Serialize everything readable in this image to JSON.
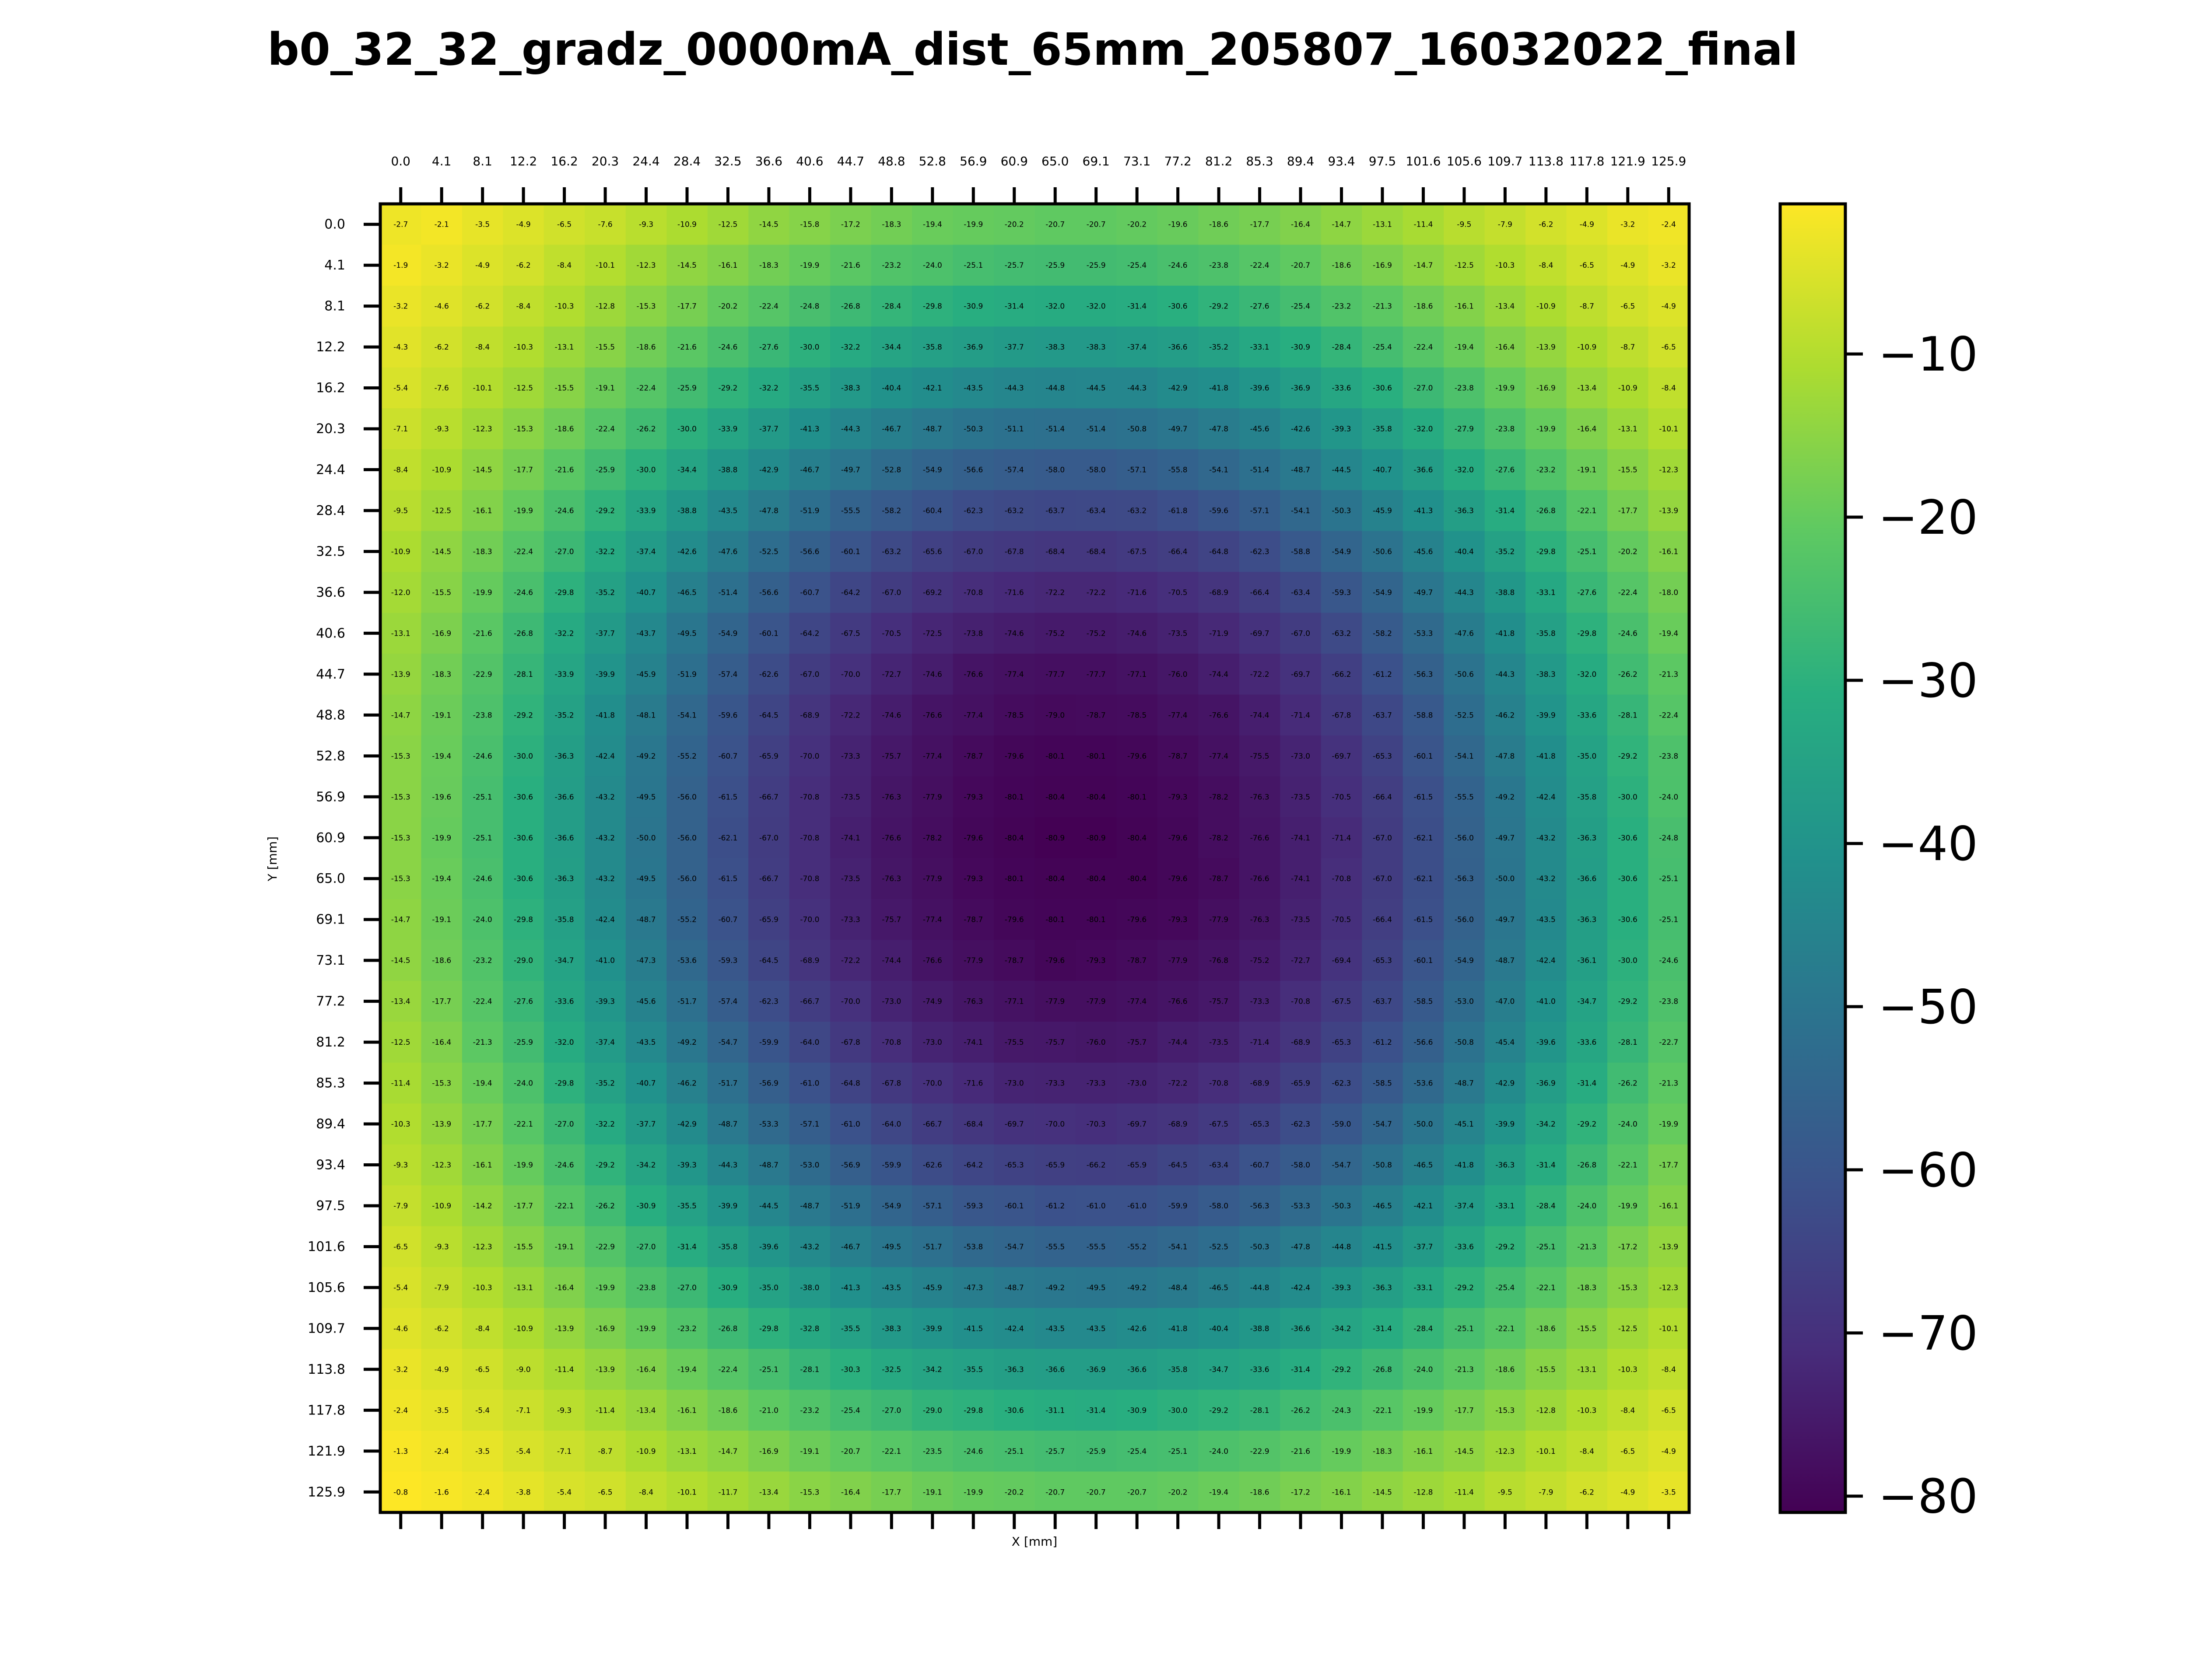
{
  "chart_data": {
    "type": "heatmap",
    "title": "b0_32_32_gradz_0000mA_dist_65mm_205807_16032022_final",
    "xlabel": "X [mm]",
    "ylabel": "Y [mm]",
    "x_ticks": [
      "0.0",
      "4.1",
      "8.1",
      "12.2",
      "16.2",
      "20.3",
      "24.4",
      "28.4",
      "32.5",
      "36.6",
      "40.6",
      "44.7",
      "48.8",
      "52.8",
      "56.9",
      "60.9",
      "65.0",
      "69.1",
      "73.1",
      "77.2",
      "81.2",
      "85.3",
      "89.4",
      "93.4",
      "97.5",
      "101.6",
      "105.6",
      "109.7",
      "113.8",
      "117.8",
      "121.9",
      "125.9"
    ],
    "y_ticks": [
      "0.0",
      "4.1",
      "8.1",
      "12.2",
      "16.2",
      "20.3",
      "24.4",
      "28.4",
      "32.5",
      "36.6",
      "40.6",
      "44.7",
      "48.8",
      "52.8",
      "56.9",
      "60.9",
      "65.0",
      "69.1",
      "73.1",
      "77.2",
      "81.2",
      "85.3",
      "89.4",
      "93.4",
      "97.5",
      "101.6",
      "105.6",
      "109.7",
      "113.8",
      "117.8",
      "121.9",
      "125.9"
    ],
    "x_tick_position": "top",
    "colormap": "viridis",
    "colorbar": {
      "ticks": [
        -10,
        -20,
        -30,
        -40,
        -50,
        -60,
        -70,
        -80
      ],
      "tick_labels": [
        "−10",
        "−20",
        "−30",
        "−40",
        "−50",
        "−60",
        "−70",
        "−80"
      ],
      "range": [
        -81,
        -0.8
      ]
    },
    "values": [
      [
        -2.7,
        -2.1,
        -3.5,
        -4.9,
        -6.5,
        -7.6,
        -9.3,
        -10.9,
        -12.5,
        -14.5,
        -15.8,
        -17.2,
        -18.3,
        -19.4,
        -19.9,
        -20.2,
        -20.7,
        -20.7,
        -20.2,
        -19.6,
        -18.6,
        -17.7,
        -16.4,
        -14.7,
        -13.1,
        -11.4,
        -9.5,
        -7.9,
        -6.2,
        -4.9,
        -3.2,
        -2.4
      ],
      [
        -1.9,
        -3.2,
        -4.9,
        -6.2,
        -8.4,
        -10.1,
        -12.3,
        -14.5,
        -16.1,
        -18.3,
        -19.9,
        -21.6,
        -23.2,
        -24.0,
        -25.1,
        -25.7,
        -25.9,
        -25.9,
        -25.4,
        -24.6,
        -23.8,
        -22.4,
        -20.7,
        -18.6,
        -16.9,
        -14.7,
        -12.5,
        -10.3,
        -8.4,
        -6.5,
        -4.9,
        -3.2
      ],
      [
        -3.2,
        -4.6,
        -6.2,
        -8.4,
        -10.3,
        -12.8,
        -15.3,
        -17.7,
        -20.2,
        -22.4,
        -24.8,
        -26.8,
        -28.4,
        -29.8,
        -30.9,
        -31.4,
        -32.0,
        -32.0,
        -31.4,
        -30.6,
        -29.2,
        -27.6,
        -25.4,
        -23.2,
        -21.3,
        -18.6,
        -16.1,
        -13.4,
        -10.9,
        -8.7,
        -6.5,
        -4.9
      ],
      [
        -4.3,
        -6.2,
        -8.4,
        -10.3,
        -13.1,
        -15.5,
        -18.6,
        -21.6,
        -24.6,
        -27.6,
        -30.0,
        -32.2,
        -34.4,
        -35.8,
        -36.9,
        -37.7,
        -38.3,
        -38.3,
        -37.4,
        -36.6,
        -35.2,
        -33.1,
        -30.9,
        -28.4,
        -25.4,
        -22.4,
        -19.4,
        -16.4,
        -13.9,
        -10.9,
        -8.7,
        -6.5
      ],
      [
        -5.4,
        -7.6,
        -10.1,
        -12.5,
        -15.5,
        -19.1,
        -22.4,
        -25.9,
        -29.2,
        -32.2,
        -35.5,
        -38.3,
        -40.4,
        -42.1,
        -43.5,
        -44.3,
        -44.8,
        -44.5,
        -44.3,
        -42.9,
        -41.8,
        -39.6,
        -36.9,
        -33.6,
        -30.6,
        -27.0,
        -23.8,
        -19.9,
        -16.9,
        -13.4,
        -10.9,
        -8.4
      ],
      [
        -7.1,
        -9.3,
        -12.3,
        -15.3,
        -18.6,
        -22.4,
        -26.2,
        -30.0,
        -33.9,
        -37.7,
        -41.3,
        -44.3,
        -46.7,
        -48.7,
        -50.3,
        -51.1,
        -51.4,
        -51.4,
        -50.8,
        -49.7,
        -47.8,
        -45.6,
        -42.6,
        -39.3,
        -35.8,
        -32.0,
        -27.9,
        -23.8,
        -19.9,
        -16.4,
        -13.1,
        -10.1
      ],
      [
        -8.4,
        -10.9,
        -14.5,
        -17.7,
        -21.6,
        -25.9,
        -30.0,
        -34.4,
        -38.8,
        -42.9,
        -46.7,
        -49.7,
        -52.8,
        -54.9,
        -56.6,
        -57.4,
        -58.0,
        -58.0,
        -57.1,
        -55.8,
        -54.1,
        -51.4,
        -48.7,
        -44.5,
        -40.7,
        -36.6,
        -32.0,
        -27.6,
        -23.2,
        -19.1,
        -15.5,
        -12.3
      ],
      [
        -9.5,
        -12.5,
        -16.1,
        -19.9,
        -24.6,
        -29.2,
        -33.9,
        -38.8,
        -43.5,
        -47.8,
        -51.9,
        -55.5,
        -58.2,
        -60.4,
        -62.3,
        -63.2,
        -63.7,
        -63.4,
        -63.2,
        -61.8,
        -59.6,
        -57.1,
        -54.1,
        -50.3,
        -45.9,
        -41.3,
        -36.3,
        -31.4,
        -26.8,
        -22.1,
        -17.7,
        -13.9
      ],
      [
        -10.9,
        -14.5,
        -18.3,
        -22.4,
        -27.0,
        -32.2,
        -37.4,
        -42.6,
        -47.6,
        -52.5,
        -56.6,
        -60.1,
        -63.2,
        -65.6,
        -67.0,
        -67.8,
        -68.4,
        -68.4,
        -67.5,
        -66.4,
        -64.8,
        -62.3,
        -58.8,
        -54.9,
        -50.6,
        -45.6,
        -40.4,
        -35.2,
        -29.8,
        -25.1,
        -20.2,
        -16.1
      ],
      [
        -12.0,
        -15.5,
        -19.9,
        -24.6,
        -29.8,
        -35.2,
        -40.7,
        -46.5,
        -51.4,
        -56.6,
        -60.7,
        -64.2,
        -67.0,
        -69.2,
        -70.8,
        -71.6,
        -72.2,
        -72.2,
        -71.6,
        -70.5,
        -68.9,
        -66.4,
        -63.4,
        -59.3,
        -54.9,
        -49.7,
        -44.3,
        -38.8,
        -33.1,
        -27.6,
        -22.4,
        -18.0
      ],
      [
        -13.1,
        -16.9,
        -21.6,
        -26.8,
        -32.2,
        -37.7,
        -43.7,
        -49.5,
        -54.9,
        -60.1,
        -64.2,
        -67.5,
        -70.5,
        -72.5,
        -73.8,
        -74.6,
        -75.2,
        -75.2,
        -74.6,
        -73.5,
        -71.9,
        -69.7,
        -67.0,
        -63.2,
        -58.2,
        -53.3,
        -47.6,
        -41.8,
        -35.8,
        -29.8,
        -24.6,
        -19.4
      ],
      [
        -13.9,
        -18.3,
        -22.9,
        -28.1,
        -33.9,
        -39.9,
        -45.9,
        -51.9,
        -57.4,
        -62.6,
        -67.0,
        -70.0,
        -72.7,
        -74.6,
        -76.6,
        -77.4,
        -77.7,
        -77.7,
        -77.1,
        -76.0,
        -74.4,
        -72.2,
        -69.7,
        -66.2,
        -61.2,
        -56.3,
        -50.6,
        -44.3,
        -38.3,
        -32.0,
        -26.2,
        -21.3
      ],
      [
        -14.7,
        -19.1,
        -23.8,
        -29.2,
        -35.2,
        -41.8,
        -48.1,
        -54.1,
        -59.6,
        -64.5,
        -68.9,
        -72.2,
        -74.6,
        -76.6,
        -77.4,
        -78.5,
        -79.0,
        -78.7,
        -78.5,
        -77.4,
        -76.6,
        -74.4,
        -71.4,
        -67.8,
        -63.7,
        -58.8,
        -52.5,
        -46.2,
        -39.9,
        -33.6,
        -28.1,
        -22.4
      ],
      [
        -15.3,
        -19.4,
        -24.6,
        -30.0,
        -36.3,
        -42.4,
        -49.2,
        -55.2,
        -60.7,
        -65.9,
        -70.0,
        -73.3,
        -75.7,
        -77.4,
        -78.7,
        -79.6,
        -80.1,
        -80.1,
        -79.6,
        -78.7,
        -77.4,
        -75.5,
        -73.0,
        -69.7,
        -65.3,
        -60.1,
        -54.1,
        -47.8,
        -41.8,
        -35.0,
        -29.2,
        -23.8
      ],
      [
        -15.3,
        -19.6,
        -25.1,
        -30.6,
        -36.6,
        -43.2,
        -49.5,
        -56.0,
        -61.5,
        -66.7,
        -70.8,
        -73.5,
        -76.3,
        -77.9,
        -79.3,
        -80.1,
        -80.4,
        -80.4,
        -80.1,
        -79.3,
        -78.2,
        -76.3,
        -73.5,
        -70.5,
        -66.4,
        -61.5,
        -55.5,
        -49.2,
        -42.4,
        -35.8,
        -30.0,
        -24.0
      ],
      [
        -15.3,
        -19.9,
        -25.1,
        -30.6,
        -36.6,
        -43.2,
        -50.0,
        -56.0,
        -62.1,
        -67.0,
        -70.8,
        -74.1,
        -76.6,
        -78.2,
        -79.6,
        -80.4,
        -80.9,
        -80.9,
        -80.4,
        -79.6,
        -78.2,
        -76.6,
        -74.1,
        -71.4,
        -67.0,
        -62.1,
        -56.0,
        -49.7,
        -43.2,
        -36.3,
        -30.6,
        -24.8
      ],
      [
        -15.3,
        -19.4,
        -24.6,
        -30.6,
        -36.3,
        -43.2,
        -49.5,
        -56.0,
        -61.5,
        -66.7,
        -70.8,
        -73.5,
        -76.3,
        -77.9,
        -79.3,
        -80.1,
        -80.4,
        -80.4,
        -80.4,
        -79.6,
        -78.7,
        -76.6,
        -74.1,
        -70.8,
        -67.0,
        -62.1,
        -56.3,
        -50.0,
        -43.2,
        -36.6,
        -30.6,
        -25.1
      ],
      [
        -14.7,
        -19.1,
        -24.0,
        -29.8,
        -35.8,
        -42.4,
        -48.7,
        -55.2,
        -60.7,
        -65.9,
        -70.0,
        -73.3,
        -75.7,
        -77.4,
        -78.7,
        -79.6,
        -80.1,
        -80.1,
        -79.6,
        -79.3,
        -77.9,
        -76.3,
        -73.5,
        -70.5,
        -66.4,
        -61.5,
        -56.0,
        -49.7,
        -43.5,
        -36.3,
        -30.6,
        -25.1
      ],
      [
        -14.5,
        -18.6,
        -23.2,
        -29.0,
        -34.7,
        -41.0,
        -47.3,
        -53.6,
        -59.3,
        -64.5,
        -68.9,
        -72.2,
        -74.4,
        -76.6,
        -77.9,
        -78.7,
        -79.6,
        -79.3,
        -78.7,
        -77.9,
        -76.8,
        -75.2,
        -72.7,
        -69.4,
        -65.3,
        -60.1,
        -54.9,
        -48.7,
        -42.4,
        -36.1,
        -30.0,
        -24.6
      ],
      [
        -13.4,
        -17.7,
        -22.4,
        -27.6,
        -33.6,
        -39.3,
        -45.6,
        -51.7,
        -57.4,
        -62.3,
        -66.7,
        -70.0,
        -73.0,
        -74.9,
        -76.3,
        -77.1,
        -77.9,
        -77.9,
        -77.4,
        -76.6,
        -75.7,
        -73.3,
        -70.8,
        -67.5,
        -63.7,
        -58.5,
        -53.0,
        -47.0,
        -41.0,
        -34.7,
        -29.2,
        -23.8
      ],
      [
        -12.5,
        -16.4,
        -21.3,
        -25.9,
        -32.0,
        -37.4,
        -43.5,
        -49.2,
        -54.7,
        -59.9,
        -64.0,
        -67.8,
        -70.8,
        -73.0,
        -74.1,
        -75.5,
        -75.7,
        -76.0,
        -75.7,
        -74.4,
        -73.5,
        -71.4,
        -68.9,
        -65.3,
        -61.2,
        -56.6,
        -50.8,
        -45.4,
        -39.6,
        -33.6,
        -28.1,
        -22.7
      ],
      [
        -11.4,
        -15.3,
        -19.4,
        -24.0,
        -29.8,
        -35.2,
        -40.7,
        -46.2,
        -51.7,
        -56.9,
        -61.0,
        -64.8,
        -67.8,
        -70.0,
        -71.6,
        -73.0,
        -73.3,
        -73.3,
        -73.0,
        -72.2,
        -70.8,
        -68.9,
        -65.9,
        -62.3,
        -58.5,
        -53.6,
        -48.7,
        -42.9,
        -36.9,
        -31.4,
        -26.2,
        -21.3
      ],
      [
        -10.3,
        -13.9,
        -17.7,
        -22.1,
        -27.0,
        -32.2,
        -37.7,
        -42.9,
        -48.7,
        -53.3,
        -57.1,
        -61.0,
        -64.0,
        -66.7,
        -68.4,
        -69.7,
        -70.0,
        -70.3,
        -69.7,
        -68.9,
        -67.5,
        -65.3,
        -62.3,
        -59.0,
        -54.7,
        -50.0,
        -45.1,
        -39.9,
        -34.2,
        -29.2,
        -24.0,
        -19.9
      ],
      [
        -9.3,
        -12.3,
        -16.1,
        -19.9,
        -24.6,
        -29.2,
        -34.2,
        -39.3,
        -44.3,
        -48.7,
        -53.0,
        -56.9,
        -59.9,
        -62.6,
        -64.2,
        -65.3,
        -65.9,
        -66.2,
        -65.9,
        -64.5,
        -63.4,
        -60.7,
        -58.0,
        -54.7,
        -50.8,
        -46.5,
        -41.8,
        -36.3,
        -31.4,
        -26.8,
        -22.1,
        -17.7
      ],
      [
        -7.9,
        -10.9,
        -14.2,
        -17.7,
        -22.1,
        -26.2,
        -30.9,
        -35.5,
        -39.9,
        -44.5,
        -48.7,
        -51.9,
        -54.9,
        -57.1,
        -59.3,
        -60.1,
        -61.2,
        -61.0,
        -61.0,
        -59.9,
        -58.0,
        -56.3,
        -53.3,
        -50.3,
        -46.5,
        -42.1,
        -37.4,
        -33.1,
        -28.4,
        -24.0,
        -19.9,
        -16.1
      ],
      [
        -6.5,
        -9.3,
        -12.3,
        -15.5,
        -19.1,
        -22.9,
        -27.0,
        -31.4,
        -35.8,
        -39.6,
        -43.2,
        -46.7,
        -49.5,
        -51.7,
        -53.8,
        -54.7,
        -55.5,
        -55.5,
        -55.2,
        -54.1,
        -52.5,
        -50.3,
        -47.8,
        -44.8,
        -41.5,
        -37.7,
        -33.6,
        -29.2,
        -25.1,
        -21.3,
        -17.2,
        -13.9
      ],
      [
        -5.4,
        -7.9,
        -10.3,
        -13.1,
        -16.4,
        -19.9,
        -23.8,
        -27.0,
        -30.9,
        -35.0,
        -38.0,
        -41.3,
        -43.5,
        -45.9,
        -47.3,
        -48.7,
        -49.2,
        -49.5,
        -49.2,
        -48.4,
        -46.5,
        -44.8,
        -42.4,
        -39.3,
        -36.3,
        -33.1,
        -29.2,
        -25.4,
        -22.1,
        -18.3,
        -15.3,
        -12.3
      ],
      [
        -4.6,
        -6.2,
        -8.4,
        -10.9,
        -13.9,
        -16.9,
        -19.9,
        -23.2,
        -26.8,
        -29.8,
        -32.8,
        -35.5,
        -38.3,
        -39.9,
        -41.5,
        -42.4,
        -43.5,
        -43.5,
        -42.6,
        -41.8,
        -40.4,
        -38.8,
        -36.6,
        -34.2,
        -31.4,
        -28.4,
        -25.1,
        -22.1,
        -18.6,
        -15.5,
        -12.5,
        -10.1
      ],
      [
        -3.2,
        -4.9,
        -6.5,
        -9.0,
        -11.4,
        -13.9,
        -16.4,
        -19.4,
        -22.4,
        -25.1,
        -28.1,
        -30.3,
        -32.5,
        -34.2,
        -35.5,
        -36.3,
        -36.6,
        -36.9,
        -36.6,
        -35.8,
        -34.7,
        -33.6,
        -31.4,
        -29.2,
        -26.8,
        -24.0,
        -21.3,
        -18.6,
        -15.5,
        -13.1,
        -10.3,
        -8.4
      ],
      [
        -2.4,
        -3.5,
        -5.4,
        -7.1,
        -9.3,
        -11.4,
        -13.4,
        -16.1,
        -18.6,
        -21.0,
        -23.2,
        -25.4,
        -27.0,
        -29.0,
        -29.8,
        -30.6,
        -31.1,
        -31.4,
        -30.9,
        -30.0,
        -29.2,
        -28.1,
        -26.2,
        -24.3,
        -22.1,
        -19.9,
        -17.7,
        -15.3,
        -12.8,
        -10.3,
        -8.4,
        -6.5
      ],
      [
        -1.3,
        -2.4,
        -3.5,
        -5.4,
        -7.1,
        -8.7,
        -10.9,
        -13.1,
        -14.7,
        -16.9,
        -19.1,
        -20.7,
        -22.1,
        -23.5,
        -24.6,
        -25.1,
        -25.7,
        -25.9,
        -25.4,
        -25.1,
        -24.0,
        -22.9,
        -21.6,
        -19.9,
        -18.3,
        -16.1,
        -14.5,
        -12.3,
        -10.1,
        -8.4,
        -6.5,
        -4.9
      ],
      [
        -0.8,
        -1.6,
        -2.4,
        -3.8,
        -5.4,
        -6.5,
        -8.4,
        -10.1,
        -11.7,
        -13.4,
        -15.3,
        -16.4,
        -17.7,
        -19.1,
        -19.9,
        -20.2,
        -20.7,
        -20.7,
        -20.7,
        -20.2,
        -19.4,
        -18.6,
        -17.2,
        -16.1,
        -14.5,
        -12.8,
        -11.4,
        -9.5,
        -7.9,
        -6.2,
        -4.9,
        -3.5
      ]
    ]
  }
}
